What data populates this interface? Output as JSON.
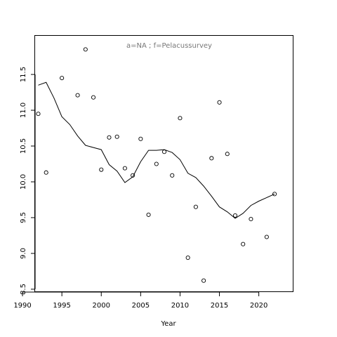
{
  "chart_data": {
    "type": "scatter",
    "title": "",
    "annotation": "a=NA  ;  f=Pelacussurvey",
    "xlabel": "Year",
    "ylabel": "",
    "xlim": [
      1991.6,
      2024.4
    ],
    "ylim": [
      8.46,
      12.04
    ],
    "xticks": [
      1990,
      1995,
      2000,
      2005,
      2010,
      2015,
      2020
    ],
    "yticks": [
      8.5,
      9.0,
      9.5,
      10.0,
      10.5,
      11.0,
      11.5
    ],
    "grid": false,
    "series": [
      {
        "type": "scatter",
        "marker": "open-circle",
        "points": [
          {
            "x": 1992,
            "y": 10.95
          },
          {
            "x": 1993,
            "y": 10.13
          },
          {
            "x": 1995,
            "y": 11.45
          },
          {
            "x": 1997,
            "y": 11.21
          },
          {
            "x": 1998,
            "y": 11.85
          },
          {
            "x": 1999,
            "y": 11.18
          },
          {
            "x": 2000,
            "y": 10.17
          },
          {
            "x": 2001,
            "y": 10.62
          },
          {
            "x": 2002,
            "y": 10.63
          },
          {
            "x": 2003,
            "y": 10.19
          },
          {
            "x": 2004,
            "y": 10.09
          },
          {
            "x": 2005,
            "y": 10.6
          },
          {
            "x": 2006,
            "y": 9.54
          },
          {
            "x": 2007,
            "y": 10.25
          },
          {
            "x": 2008,
            "y": 10.42
          },
          {
            "x": 2009,
            "y": 10.09
          },
          {
            "x": 2010,
            "y": 10.89
          },
          {
            "x": 2011,
            "y": 8.94
          },
          {
            "x": 2012,
            "y": 9.65
          },
          {
            "x": 2013,
            "y": 8.62
          },
          {
            "x": 2014,
            "y": 10.33
          },
          {
            "x": 2015,
            "y": 11.11
          },
          {
            "x": 2016,
            "y": 10.39
          },
          {
            "x": 2017,
            "y": 9.53
          },
          {
            "x": 2019,
            "y": 9.48
          },
          {
            "x": 2018,
            "y": 9.13
          },
          {
            "x": 2021,
            "y": 9.23
          },
          {
            "x": 2022,
            "y": 9.83
          }
        ]
      },
      {
        "type": "line",
        "points": [
          {
            "x": 1992,
            "y": 11.35
          },
          {
            "x": 1993,
            "y": 11.39
          },
          {
            "x": 1994,
            "y": 11.17
          },
          {
            "x": 1995,
            "y": 10.91
          },
          {
            "x": 1996,
            "y": 10.8
          },
          {
            "x": 1997,
            "y": 10.64
          },
          {
            "x": 1998,
            "y": 10.51
          },
          {
            "x": 1999,
            "y": 10.48
          },
          {
            "x": 2000,
            "y": 10.45
          },
          {
            "x": 2001,
            "y": 10.24
          },
          {
            "x": 2002,
            "y": 10.15
          },
          {
            "x": 2003,
            "y": 9.99
          },
          {
            "x": 2004,
            "y": 10.07
          },
          {
            "x": 2005,
            "y": 10.28
          },
          {
            "x": 2006,
            "y": 10.44
          },
          {
            "x": 2007,
            "y": 10.44
          },
          {
            "x": 2008,
            "y": 10.45
          },
          {
            "x": 2009,
            "y": 10.41
          },
          {
            "x": 2010,
            "y": 10.31
          },
          {
            "x": 2011,
            "y": 10.12
          },
          {
            "x": 2012,
            "y": 10.06
          },
          {
            "x": 2013,
            "y": 9.94
          },
          {
            "x": 2014,
            "y": 9.8
          },
          {
            "x": 2015,
            "y": 9.65
          },
          {
            "x": 2016,
            "y": 9.58
          },
          {
            "x": 2017,
            "y": 9.49
          },
          {
            "x": 2018,
            "y": 9.56
          },
          {
            "x": 2019,
            "y": 9.67
          },
          {
            "x": 2020,
            "y": 9.73
          },
          {
            "x": 2021,
            "y": 9.78
          },
          {
            "x": 2022,
            "y": 9.83
          }
        ]
      }
    ]
  }
}
